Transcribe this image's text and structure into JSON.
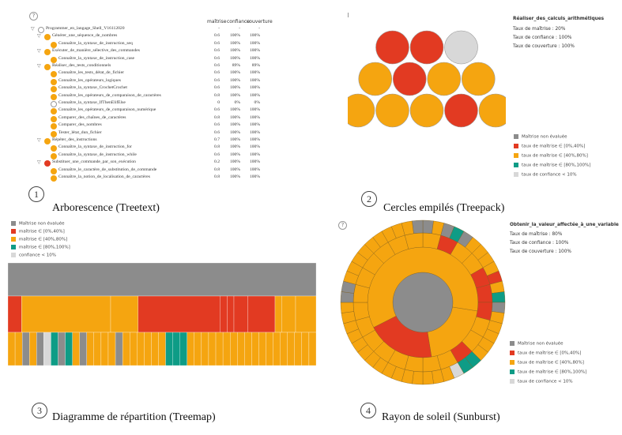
{
  "colors": {
    "grey": "#8c8c8c",
    "red": "#e23a22",
    "orange": "#f5a510",
    "teal": "#0e9c86",
    "light": "#d8d8d8",
    "white": "#ffffff"
  },
  "legend_labels": [
    "Maîtrise non évaluée",
    "taux de maîtrise ∈ [0%,40%]",
    "taux de maîtrise ∈ [40%,80%]",
    "taux de maîtrise ∈ [80%,100%]",
    "taux de confiance < 10%"
  ],
  "legend_labels_treemap": [
    "Maîtrise non évaluée",
    "maîtrise ∈ [0%,40%]",
    "maîtrise ∈ [40%,80%]",
    "maîtrise ∈ [80%,100%]",
    "confiance < 10%"
  ],
  "panel1": {
    "number": "1",
    "caption": "Arborescence (Treetext)",
    "headers": [
      "maîtrise",
      "confiance",
      "couverture"
    ],
    "rows": [
      {
        "indent": 0,
        "tw": "▽",
        "color": "white",
        "label": "Programmer_en_langage_Shell_V16112020",
        "m": "-",
        "c": "-",
        "cv": "-"
      },
      {
        "indent": 1,
        "tw": "▽",
        "color": "orange",
        "label": "Générer_une_séquence_de_nombres",
        "m": "0.6",
        "c": "100%",
        "cv": "100%"
      },
      {
        "indent": 2,
        "tw": "",
        "color": "orange",
        "label": "Connaître_la_syntaxe_de_instruction_seq",
        "m": "0.6",
        "c": "100%",
        "cv": "100%"
      },
      {
        "indent": 1,
        "tw": "▽",
        "color": "orange",
        "label": "Exécuter_de_manière_sélective_des_commandes",
        "m": "0.6",
        "c": "100%",
        "cv": "100%"
      },
      {
        "indent": 2,
        "tw": "",
        "color": "orange",
        "label": "Connaître_la_syntaxe_de_instruction_case",
        "m": "0.6",
        "c": "100%",
        "cv": "100%"
      },
      {
        "indent": 1,
        "tw": "▽",
        "color": "orange",
        "label": "Réaliser_des_tests_conditionnels",
        "m": "0.6",
        "c": "89%",
        "cv": "89%"
      },
      {
        "indent": 2,
        "tw": "",
        "color": "orange",
        "label": "Connaître_les_tests_détat_de_fichier",
        "m": "0.6",
        "c": "100%",
        "cv": "100%"
      },
      {
        "indent": 2,
        "tw": "",
        "color": "orange",
        "label": "Connaître_les_opérateurs_logiques",
        "m": "0.6",
        "c": "100%",
        "cv": "100%"
      },
      {
        "indent": 2,
        "tw": "",
        "color": "orange",
        "label": "Connaître_la_syntaxe_CrochetCrochet",
        "m": "0.6",
        "c": "100%",
        "cv": "100%"
      },
      {
        "indent": 2,
        "tw": "",
        "color": "orange",
        "label": "Connaître_les_opérateurs_de_comparaison_de_caractères",
        "m": "0.8",
        "c": "100%",
        "cv": "100%"
      },
      {
        "indent": 2,
        "tw": "",
        "color": "white",
        "label": "Connaître_la_syntaxe_IfThenElifElse",
        "m": "0",
        "c": "0%",
        "cv": "0%"
      },
      {
        "indent": 2,
        "tw": "",
        "color": "orange",
        "label": "Connaître_les_opérateurs_de_comparaison_numérique",
        "m": "0.6",
        "c": "100%",
        "cv": "100%"
      },
      {
        "indent": 2,
        "tw": "",
        "color": "orange",
        "label": "Comparer_des_chaînes_de_caractères",
        "m": "0.8",
        "c": "100%",
        "cv": "100%"
      },
      {
        "indent": 2,
        "tw": "",
        "color": "orange",
        "label": "Comparer_des_nombres",
        "m": "0.6",
        "c": "100%",
        "cv": "100%"
      },
      {
        "indent": 2,
        "tw": "",
        "color": "orange",
        "label": "Tester_létat_dun_fichier",
        "m": "0.6",
        "c": "100%",
        "cv": "100%"
      },
      {
        "indent": 1,
        "tw": "▽",
        "color": "orange",
        "label": "Répéter_des_instructions",
        "m": "0.7",
        "c": "100%",
        "cv": "100%"
      },
      {
        "indent": 2,
        "tw": "",
        "color": "orange",
        "label": "Connaître_la_syntaxe_de_instruction_for",
        "m": "0.8",
        "c": "100%",
        "cv": "100%"
      },
      {
        "indent": 2,
        "tw": "",
        "color": "orange",
        "label": "Connaître_la_syntaxe_de_instruction_while",
        "m": "0.6",
        "c": "100%",
        "cv": "100%"
      },
      {
        "indent": 1,
        "tw": "▽",
        "color": "red",
        "label": "Substituer_une_commande_par_son_exécution",
        "m": "0.2",
        "c": "100%",
        "cv": "100%"
      },
      {
        "indent": 2,
        "tw": "",
        "color": "orange",
        "label": "Connaître_le_caractère_de_substitution_de_commande",
        "m": "0.8",
        "c": "100%",
        "cv": "100%"
      },
      {
        "indent": 2,
        "tw": "",
        "color": "orange",
        "label": "Connaître_la_notion_de_localisation_de_caractères",
        "m": "0.8",
        "c": "100%",
        "cv": "100%"
      }
    ]
  },
  "panel2": {
    "number": "2",
    "caption": "Cercles empilés (Treepack)",
    "selected_title": "Réaliser_des_calculs_arithmétiques",
    "info": [
      "Taux de maîtrise : 20%",
      "Taux de confiance : 100%",
      "Taux de couverture : 100%"
    ],
    "circle_rows": [
      [
        "red",
        "red",
        "light"
      ],
      [
        "orange",
        "red",
        "orange",
        "orange"
      ],
      [
        "orange",
        "orange",
        "orange",
        "red",
        "orange"
      ]
    ]
  },
  "panel3": {
    "number": "3",
    "caption": "Diagramme de répartition (Treemap)",
    "level2": [
      {
        "c": "red",
        "w": 2
      },
      {
        "c": "orange",
        "w": 13
      },
      {
        "c": "orange",
        "w": 4
      },
      {
        "c": "red",
        "w": 12
      },
      {
        "c": "red",
        "w": 1
      },
      {
        "c": "red",
        "w": 1
      },
      {
        "c": "red",
        "w": 2
      },
      {
        "c": "red",
        "w": 4
      },
      {
        "c": "orange",
        "w": 1
      },
      {
        "c": "orange",
        "w": 2
      },
      {
        "c": "orange",
        "w": 3
      }
    ],
    "level3": [
      "orange",
      "orange",
      "grey",
      "orange",
      "grey",
      "light",
      "teal",
      "grey",
      "teal",
      "orange",
      "grey",
      "orange",
      "orange",
      "orange",
      "orange",
      "grey",
      "orange",
      "orange",
      "orange",
      "orange",
      "orange",
      "orange",
      "teal",
      "teal",
      "teal",
      "orange",
      "orange",
      "orange",
      "orange",
      "orange",
      "orange",
      "orange",
      "orange",
      "orange",
      "orange",
      "orange",
      "orange",
      "orange",
      "orange",
      "orange",
      "orange",
      "orange",
      "orange"
    ]
  },
  "panel4": {
    "number": "4",
    "caption": "Rayon de soleil (Sunburst)",
    "selected_title": "Obtenir_la_valeur_affectée_à_une_variable",
    "info": [
      "Taux de maîtrise : 80%",
      "Taux de confiance : 100%",
      "Taux de couverture : 100%"
    ],
    "ring1": [
      {
        "c": "orange",
        "w": 2
      },
      {
        "c": "red",
        "w": 2
      },
      {
        "c": "orange",
        "w": 6
      }
    ],
    "ring2": [
      "orange",
      "red",
      "orange",
      "orange",
      "red",
      "red",
      "red",
      "orange",
      "orange",
      "red",
      "orange",
      "orange",
      "orange",
      "orange",
      "orange",
      "orange",
      "orange",
      "orange",
      "orange",
      "orange",
      "orange",
      "orange",
      "orange",
      "orange"
    ],
    "ring3": [
      "grey",
      "orange",
      "grey",
      "teal",
      "grey",
      "orange",
      "orange",
      "orange",
      "orange",
      "red",
      "orange",
      "teal",
      "grey",
      "orange",
      "orange",
      "orange",
      "orange",
      "orange",
      "teal",
      "teal",
      "light",
      "orange",
      "orange",
      "orange",
      "orange",
      "orange",
      "orange",
      "orange",
      "orange",
      "orange",
      "orange",
      "orange",
      "orange",
      "orange",
      "orange",
      "orange",
      "grey",
      "grey",
      "orange",
      "orange",
      "orange",
      "orange",
      "orange",
      "orange",
      "orange",
      "orange",
      "orange",
      "grey"
    ]
  }
}
